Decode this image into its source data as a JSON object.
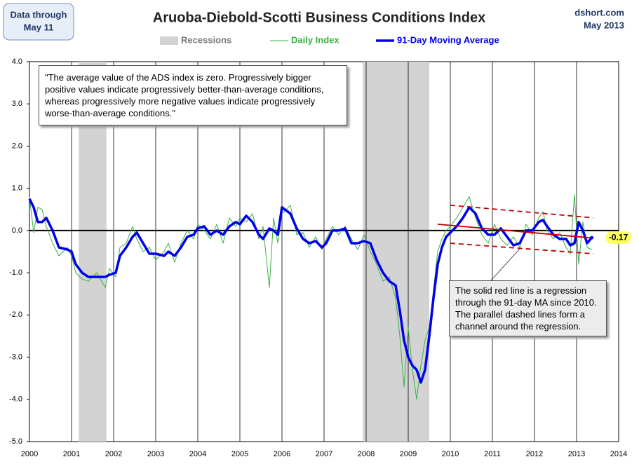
{
  "chart_data": {
    "type": "line",
    "title": "Aruoba-Diebold-Scotti Business Conditions Index",
    "data_through": [
      "Data through",
      "May 11"
    ],
    "source": [
      "dshort.com",
      "May 2013"
    ],
    "quote": "\"The average value of the ADS index is zero. Progressively bigger positive values indicate progressively better-than-average conditions, whereas progressively more negative values indicate progressively worse-than-average conditions.\"",
    "callout": "The solid red line is a regression through the 91-day MA since 2010. The parallel dashed lines form a channel around the regression.",
    "recessions": {
      "name": "Recessions",
      "color": "#d3d3d3",
      "spans": [
        [
          2001.17,
          2001.83
        ],
        [
          2007.92,
          2009.5
        ]
      ]
    },
    "x": [
      2000.0,
      2000.1,
      2000.2,
      2000.3,
      2000.4,
      2000.55,
      2000.7,
      2000.9,
      2001.0,
      2001.1,
      2001.25,
      2001.4,
      2001.6,
      2001.8,
      2001.9,
      2002.05,
      2002.15,
      2002.3,
      2002.45,
      2002.55,
      2002.7,
      2002.85,
      2003.0,
      2003.2,
      2003.3,
      2003.45,
      2003.6,
      2003.75,
      2003.9,
      2004.0,
      2004.15,
      2004.3,
      2004.45,
      2004.6,
      2004.75,
      2004.9,
      2005.0,
      2005.15,
      2005.3,
      2005.45,
      2005.55,
      2005.7,
      2005.8,
      2005.9,
      2006.0,
      2006.2,
      2006.35,
      2006.5,
      2006.65,
      2006.8,
      2006.95,
      2007.05,
      2007.2,
      2007.35,
      2007.5,
      2007.65,
      2007.8,
      2007.95,
      2008.1,
      2008.25,
      2008.4,
      2008.55,
      2008.7,
      2008.8,
      2008.9,
      2009.0,
      2009.1,
      2009.2,
      2009.3,
      2009.4,
      2009.5,
      2009.6,
      2009.7,
      2009.8,
      2009.9,
      2010.0,
      2010.15,
      2010.3,
      2010.45,
      2010.6,
      2010.75,
      2010.9,
      2011.05,
      2011.2,
      2011.35,
      2011.5,
      2011.65,
      2011.8,
      2011.95,
      2012.1,
      2012.2,
      2012.3,
      2012.45,
      2012.6,
      2012.75,
      2012.85,
      2012.95,
      2013.05,
      2013.15,
      2013.25,
      2013.36
    ],
    "series": [
      {
        "name": "Daily Index",
        "color": "#3cb043",
        "width": 1,
        "values": [
          0.8,
          -0.05,
          0.55,
          0.5,
          0.1,
          -0.3,
          -0.6,
          -0.4,
          -0.6,
          -1.0,
          -1.15,
          -1.2,
          -1.0,
          -1.35,
          -0.9,
          -1.1,
          -0.4,
          -0.3,
          0.1,
          -0.2,
          -0.5,
          -0.4,
          -0.7,
          -0.5,
          -0.3,
          -0.75,
          -0.3,
          0,
          -0.2,
          0.15,
          0,
          -0.2,
          0.15,
          -0.3,
          0.3,
          0.1,
          0.3,
          0.2,
          0.4,
          -0.2,
          0.1,
          -1.35,
          0.3,
          -0.3,
          0.4,
          0.6,
          -0.1,
          -0.05,
          -0.4,
          -0.15,
          -0.45,
          -0.2,
          0.1,
          -0.1,
          0.1,
          -0.2,
          -0.45,
          -0.1,
          -0.5,
          -0.8,
          -1.2,
          -1.1,
          -1.6,
          -2.5,
          -3.7,
          -2.3,
          -3.3,
          -4.0,
          -3.2,
          -2.6,
          -2.3,
          -1.4,
          -0.5,
          -0.2,
          0,
          0.1,
          0.3,
          0.55,
          0.8,
          0.3,
          -0.1,
          -0.3,
          0.15,
          -0.2,
          -0.35,
          -0.15,
          -0.4,
          0.15,
          -0.1,
          0.3,
          0.45,
          0,
          -0.2,
          -0.05,
          -0.4,
          -0.55,
          0.85,
          -0.8,
          0.2,
          -0.4,
          -0.45
        ]
      },
      {
        "name": "91-Day Moving Average",
        "color": "#0000ee",
        "width": 3.5,
        "values": [
          0.75,
          0.55,
          0.2,
          0.2,
          0.3,
          0,
          -0.4,
          -0.45,
          -0.5,
          -0.8,
          -1.0,
          -1.1,
          -1.1,
          -1.1,
          -1.05,
          -1.0,
          -0.6,
          -0.4,
          -0.15,
          -0.05,
          -0.3,
          -0.55,
          -0.55,
          -0.6,
          -0.5,
          -0.6,
          -0.4,
          -0.15,
          -0.1,
          0.05,
          0.1,
          -0.1,
          0,
          -0.1,
          0.1,
          0.2,
          0.15,
          0.35,
          0.2,
          -0.1,
          -0.2,
          0.05,
          0,
          -0.1,
          0.55,
          0.4,
          0.05,
          -0.2,
          -0.3,
          -0.25,
          -0.4,
          -0.3,
          0,
          0,
          0.05,
          -0.3,
          -0.3,
          -0.25,
          -0.3,
          -0.7,
          -1.0,
          -1.2,
          -1.3,
          -1.9,
          -2.6,
          -3.0,
          -3.2,
          -3.3,
          -3.6,
          -3.3,
          -2.5,
          -1.6,
          -0.8,
          -0.4,
          -0.15,
          -0.05,
          0.1,
          0.3,
          0.55,
          0.4,
          0.05,
          -0.1,
          -0.1,
          0.05,
          -0.15,
          -0.35,
          -0.3,
          0,
          0,
          0.2,
          0.25,
          0.1,
          -0.1,
          -0.2,
          -0.2,
          -0.35,
          -0.3,
          0.2,
          0,
          -0.3,
          -0.17
        ]
      }
    ],
    "trend_lines": [
      {
        "x": [
          2009.7,
          2013.4
        ],
        "values": [
          0.15,
          -0.18
        ],
        "color": "#c00000",
        "style": "solid"
      },
      {
        "x": [
          2010.0,
          2013.4
        ],
        "values": [
          0.6,
          0.3
        ],
        "color": "#c00000",
        "style": "dashed"
      },
      {
        "x": [
          2010.0,
          2013.4
        ],
        "values": [
          -0.3,
          -0.55
        ],
        "color": "#c00000",
        "style": "dashed"
      }
    ],
    "latest": {
      "x": 2013.36,
      "value": -0.17
    },
    "xlim": [
      2000,
      2014
    ],
    "xticks": [
      2000,
      2001,
      2002,
      2003,
      2004,
      2005,
      2006,
      2007,
      2008,
      2009,
      2010,
      2011,
      2012,
      2013,
      2014
    ],
    "ylim": [
      -5,
      4
    ],
    "yticks": [
      {
        "value": 4,
        "label": "4.0"
      },
      {
        "value": 3,
        "label": "3.0"
      },
      {
        "value": 2,
        "label": "2.0"
      },
      {
        "value": 1,
        "label": "1.0"
      },
      {
        "value": 0,
        "label": "0.0"
      },
      {
        "value": -1,
        "label": "-1.0"
      },
      {
        "value": -2,
        "label": "-2.0"
      },
      {
        "value": -3,
        "label": "-3.0"
      },
      {
        "value": -4,
        "label": "-4.0"
      },
      {
        "value": -5,
        "label": "-5.0"
      }
    ],
    "grid": "x",
    "zero_line": true
  }
}
